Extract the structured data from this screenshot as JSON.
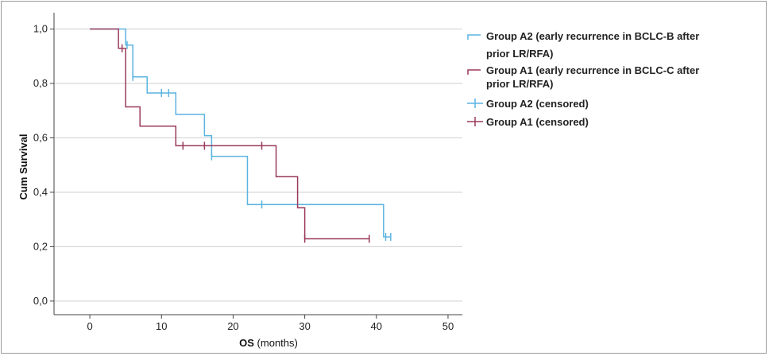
{
  "chart_data": {
    "type": "line",
    "subtype": "kaplan-meier",
    "title": "",
    "xlabel_bold": "OS",
    "xlabel_rest": " (months)",
    "ylabel": "Cum Survival",
    "xlim": [
      -5,
      52
    ],
    "ylim": [
      -0.05,
      1.06
    ],
    "x_ticks": [
      0,
      10,
      20,
      30,
      40,
      50
    ],
    "y_ticks": [
      0.0,
      0.2,
      0.4,
      0.6,
      0.8,
      1.0
    ],
    "x_tick_labels": [
      "0",
      "10",
      "20",
      "30",
      "40",
      "50"
    ],
    "y_tick_labels": [
      "0,0",
      "0,2",
      "0,4",
      "0,6",
      "0,8",
      "1,0"
    ],
    "grid": "horizontal",
    "legend_position": "right",
    "series": [
      {
        "name": "Group A2 (early recurrence in BCLC-B after prior LR/RFA)",
        "legend_lines": [
          "Group A2 (early recurrence in BCLC-B after",
          "prior LR/RFA)"
        ],
        "color": "#5bb4e0",
        "steps": [
          [
            0,
            1.0
          ],
          [
            5,
            0.941
          ],
          [
            6,
            0.824
          ],
          [
            8,
            0.765
          ],
          [
            12,
            0.686
          ],
          [
            16,
            0.608
          ],
          [
            17,
            0.532
          ],
          [
            22,
            0.355
          ],
          [
            41,
            0.236
          ],
          [
            42,
            0.236
          ]
        ],
        "censored": [
          [
            5.2,
            0.941
          ],
          [
            6,
            0.824
          ],
          [
            10,
            0.765
          ],
          [
            11,
            0.765
          ],
          [
            17,
            0.532
          ],
          [
            24,
            0.355
          ],
          [
            41.3,
            0.236
          ],
          [
            42,
            0.236
          ]
        ],
        "censored_name": "Group A2 (censored)"
      },
      {
        "name": "Group A1 (early recurrence in BCLC-C after prior LR/RFA)",
        "legend_lines": [
          "Group A1 (early recurrence in BCLC-C after",
          "prior LR/RFA)"
        ],
        "color": "#9b3a5a",
        "steps": [
          [
            0,
            1.0
          ],
          [
            4,
            0.929
          ],
          [
            5,
            0.714
          ],
          [
            7,
            0.643
          ],
          [
            12,
            0.571
          ],
          [
            26,
            0.457
          ],
          [
            29,
            0.343
          ],
          [
            30,
            0.229
          ],
          [
            39,
            0.229
          ]
        ],
        "censored": [
          [
            4.5,
            0.929
          ],
          [
            13,
            0.571
          ],
          [
            16,
            0.571
          ],
          [
            24,
            0.571
          ],
          [
            30,
            0.229
          ],
          [
            39,
            0.229
          ]
        ],
        "censored_name": "Group A1 (censored)"
      }
    ]
  }
}
